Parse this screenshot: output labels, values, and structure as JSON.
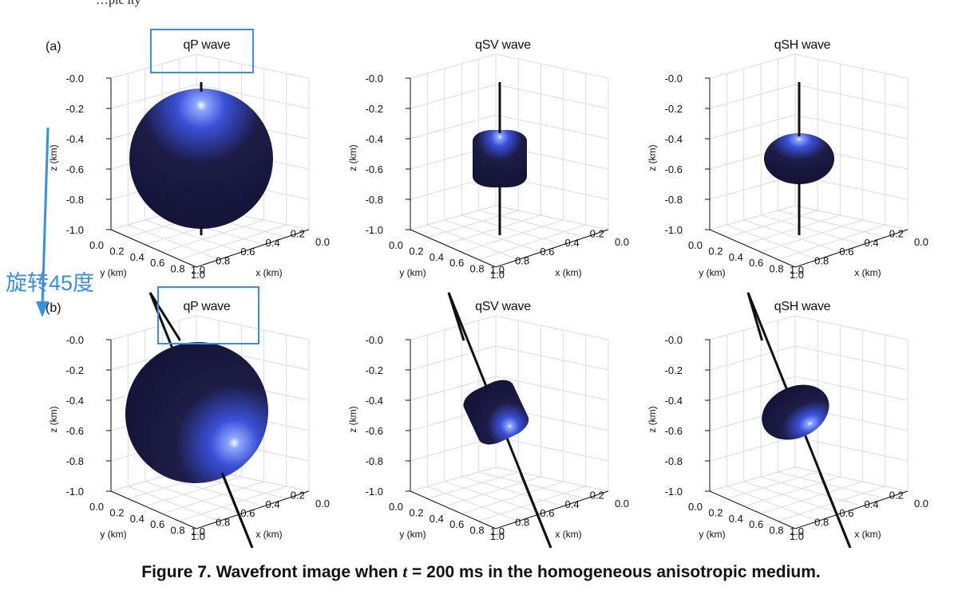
{
  "header_fragment": "…pic        ity",
  "rows": [
    {
      "label": "(a)",
      "rotated": false
    },
    {
      "label": "(b)",
      "rotated": true
    }
  ],
  "panels": [
    {
      "title": "qP wave",
      "row": 0,
      "shape": "large"
    },
    {
      "title": "qSV wave",
      "row": 0,
      "shape": "barrel"
    },
    {
      "title": "qSH wave",
      "row": 0,
      "shape": "oblate"
    },
    {
      "title": "qP wave",
      "row": 1,
      "shape": "large"
    },
    {
      "title": "qSV wave",
      "row": 1,
      "shape": "barrel"
    },
    {
      "title": "qSH wave",
      "row": 1,
      "shape": "oblate"
    }
  ],
  "axes": {
    "z_label": "z (km)",
    "y_label": "y (km)",
    "x_label": "x (km)",
    "z_ticks": [
      "-0.0",
      "-0.2",
      "-0.4",
      "-0.6",
      "-0.8",
      "-1.0"
    ],
    "y_ticks": [
      "0.0",
      "0.2",
      "0.4",
      "0.6",
      "0.8",
      "1.0"
    ],
    "x_ticks": [
      "1.0",
      "0.8",
      "0.6",
      "0.4",
      "0.2",
      "0.0"
    ]
  },
  "caption": {
    "prefix": "Figure 7. Wavefront image when ",
    "var": "t",
    "suffix": " = 200 ms in the homogeneous anisotropic medium."
  },
  "annotation": {
    "text": "旋转45度",
    "color": "#3a8fe0"
  },
  "colors": {
    "surface_dark": "#1c1c46",
    "surface_highlight": "#3a50d8",
    "grid": "#dddddd",
    "axis_line": "#111111"
  }
}
